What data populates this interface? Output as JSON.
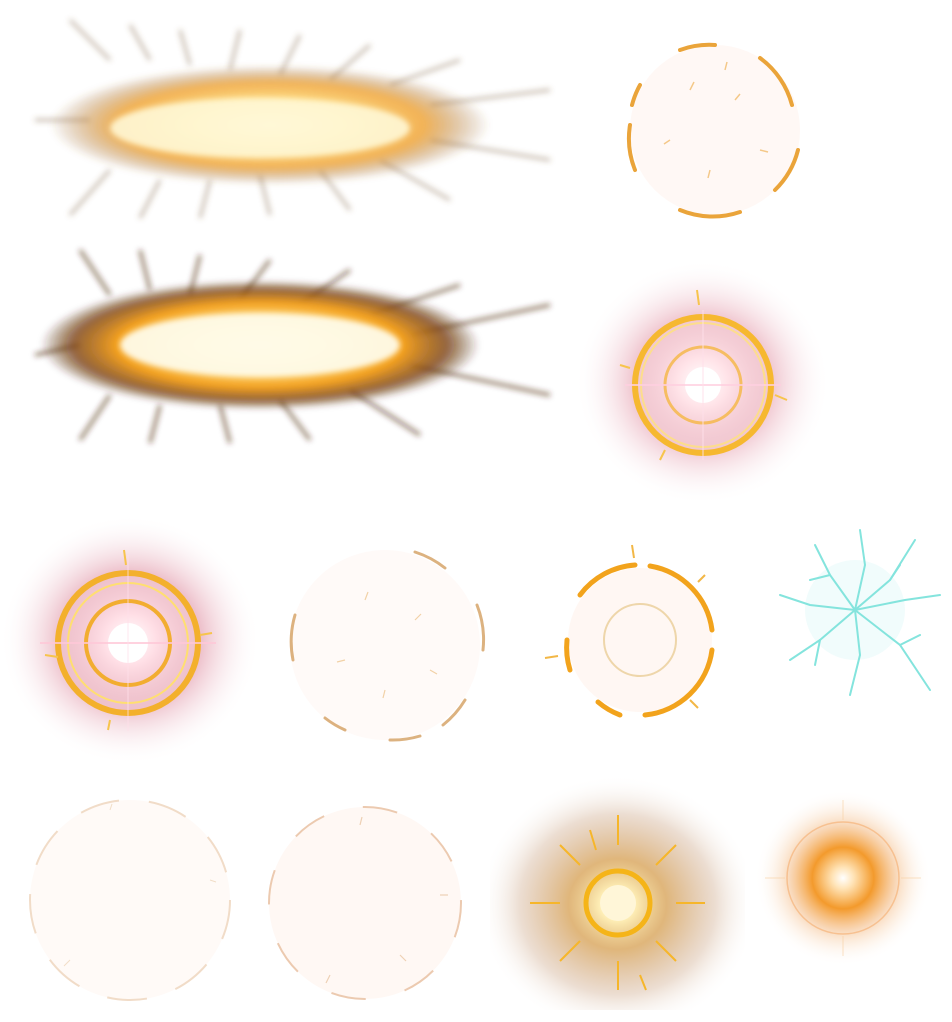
{
  "sheet": {
    "background": "#ffffff",
    "palette": {
      "flame_core": "#fff6c8",
      "flame_mid": "#ffb52e",
      "flame_dark": "#7a3e0c",
      "ring_gold": "#f4b02a",
      "glow_pink": "#e9a6b4",
      "glow_orange": "#f39a2c",
      "crack_cyan": "#8ee8e2"
    },
    "sprites": [
      {
        "id": "flame-streak-light",
        "icon": "flame-streak-icon"
      },
      {
        "id": "broken-ring-faint",
        "icon": "broken-ring-icon"
      },
      {
        "id": "flame-streak-dark",
        "icon": "flame-streak-icon"
      },
      {
        "id": "glow-ring-large",
        "icon": "glow-ring-icon"
      },
      {
        "id": "glow-ring-double",
        "icon": "glow-ring-icon"
      },
      {
        "id": "broken-ring-very-faint",
        "icon": "broken-ring-icon"
      },
      {
        "id": "broken-ring-gold",
        "icon": "broken-ring-icon"
      },
      {
        "id": "crack-burst-cyan",
        "icon": "crack-burst-icon"
      },
      {
        "id": "faint-ring-ghost-1",
        "icon": "faint-ring-icon"
      },
      {
        "id": "faint-ring-ghost-2",
        "icon": "faint-ring-icon"
      },
      {
        "id": "glow-burst-orange",
        "icon": "glow-burst-icon"
      },
      {
        "id": "glow-orb-orange",
        "icon": "glow-orb-icon"
      }
    ]
  }
}
